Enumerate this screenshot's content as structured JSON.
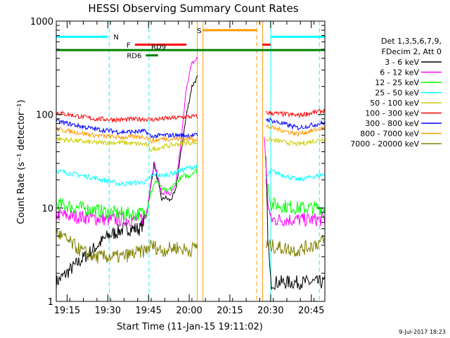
{
  "chart_data": {
    "type": "line",
    "title": "HESSI Observing Summary Count Rates",
    "xlabel": "Start Time (11-Jan-15 19:11:02)",
    "ylabel": "Count Rate (s⁻¹ detector⁻¹)",
    "yscale": "log",
    "ylim": [
      1,
      1000
    ],
    "xlim_minutes": [
      1151.0,
      1250.0
    ],
    "x_ticks": [
      {
        "label": "19:15",
        "min": 1155
      },
      {
        "label": "19:30",
        "min": 1170
      },
      {
        "label": "19:45",
        "min": 1185
      },
      {
        "label": "20:00",
        "min": 1200
      },
      {
        "label": "20:15",
        "min": 1215
      },
      {
        "label": "20:30",
        "min": 1230
      },
      {
        "label": "20:45",
        "min": 1245
      }
    ],
    "y_ticks": [
      {
        "label": "1",
        "value": 1
      },
      {
        "label": "10",
        "value": 10
      },
      {
        "label": "100",
        "value": 100
      },
      {
        "label": "1000",
        "value": 1000
      }
    ],
    "grid": false,
    "legend_position": "right",
    "legend_header": [
      "Det 1,3,5,6,7,9,",
      "FDecim 2, Att 0"
    ],
    "series": [
      {
        "name": "3 - 6 keV",
        "color": "#000000",
        "points": [
          [
            1151,
            1.6
          ],
          [
            1170,
            5
          ],
          [
            1176,
            6
          ],
          [
            1182,
            6
          ],
          [
            1184,
            8
          ],
          [
            1186,
            18
          ],
          [
            1187,
            30
          ],
          [
            1188,
            22
          ],
          [
            1189,
            16
          ],
          [
            1190,
            12
          ],
          [
            1191,
            13
          ],
          [
            1193,
            12
          ],
          [
            1195,
            15
          ],
          [
            1197,
            40
          ],
          [
            1199,
            100
          ],
          [
            1201,
            200
          ],
          [
            1203,
            250
          ],
          [
            1203.2,
            250
          ]
        ],
        "points2": [
          [
            1228,
            60
          ],
          [
            1229,
            5
          ],
          [
            1230,
            1.6
          ],
          [
            1250,
            1.6
          ]
        ]
      },
      {
        "name": "6 - 12 keV",
        "color": "#ff00ff",
        "points": [
          [
            1151,
            8.5
          ],
          [
            1170,
            7.5
          ],
          [
            1180,
            7.5
          ],
          [
            1184,
            8
          ],
          [
            1186,
            20
          ],
          [
            1187,
            30
          ],
          [
            1188,
            25
          ],
          [
            1189,
            18
          ],
          [
            1190,
            14
          ],
          [
            1191,
            15
          ],
          [
            1193,
            14
          ],
          [
            1195,
            17
          ],
          [
            1197,
            50
          ],
          [
            1199,
            200
          ],
          [
            1201,
            350
          ],
          [
            1203,
            400
          ],
          [
            1203.2,
            400
          ]
        ],
        "points2": [
          [
            1227.5,
            75
          ],
          [
            1229,
            12
          ],
          [
            1230,
            7.5
          ],
          [
            1250,
            7.5
          ]
        ]
      },
      {
        "name": "12 - 25 keV",
        "color": "#00ff00",
        "points": [
          [
            1151,
            11
          ],
          [
            1170,
            9
          ],
          [
            1180,
            8.5
          ],
          [
            1184,
            9
          ],
          [
            1186,
            15
          ],
          [
            1188,
            20
          ],
          [
            1190,
            16
          ],
          [
            1192,
            15
          ],
          [
            1194,
            17
          ],
          [
            1196,
            20
          ],
          [
            1198,
            22
          ],
          [
            1200,
            22
          ],
          [
            1202,
            25
          ],
          [
            1203.2,
            25
          ]
        ],
        "points2": [
          [
            1229,
            18
          ],
          [
            1230,
            11
          ],
          [
            1240,
            10
          ],
          [
            1250,
            10
          ]
        ]
      },
      {
        "name": "25 - 50 keV",
        "color": "#00ffff",
        "points": [
          [
            1151,
            25
          ],
          [
            1165,
            21
          ],
          [
            1175,
            18
          ],
          [
            1184,
            19
          ],
          [
            1186,
            22
          ],
          [
            1188,
            23
          ],
          [
            1190,
            22
          ],
          [
            1195,
            24
          ],
          [
            1200,
            27
          ],
          [
            1203.2,
            28
          ]
        ],
        "points2": [
          [
            1228,
            20
          ],
          [
            1230,
            25
          ],
          [
            1240,
            20
          ],
          [
            1250,
            23
          ]
        ]
      },
      {
        "name": "50 - 100 keV",
        "color": "#cccc00",
        "points": [
          [
            1151,
            55
          ],
          [
            1165,
            50
          ],
          [
            1175,
            50
          ],
          [
            1184,
            48
          ],
          [
            1186,
            42
          ],
          [
            1190,
            45
          ],
          [
            1195,
            48
          ],
          [
            1200,
            50
          ],
          [
            1203.2,
            50
          ]
        ],
        "points2": [
          [
            1228,
            55
          ],
          [
            1240,
            48
          ],
          [
            1250,
            55
          ]
        ]
      },
      {
        "name": "100 - 300 keV",
        "color": "#ff0000",
        "points": [
          [
            1151,
            105
          ],
          [
            1165,
            90
          ],
          [
            1175,
            88
          ],
          [
            1184,
            90
          ],
          [
            1186,
            88
          ],
          [
            1190,
            90
          ],
          [
            1195,
            92
          ],
          [
            1200,
            95
          ],
          [
            1203.2,
            95
          ]
        ],
        "points2": [
          [
            1228,
            105
          ],
          [
            1240,
            98
          ],
          [
            1250,
            110
          ]
        ]
      },
      {
        "name": "300 - 800 keV",
        "color": "#0000ff",
        "points": [
          [
            1151,
            85
          ],
          [
            1165,
            70
          ],
          [
            1175,
            65
          ],
          [
            1184,
            66
          ],
          [
            1186,
            58
          ],
          [
            1190,
            60
          ],
          [
            1195,
            60
          ],
          [
            1200,
            60
          ],
          [
            1203.2,
            60
          ]
        ],
        "points2": [
          [
            1228,
            90
          ],
          [
            1240,
            72
          ],
          [
            1250,
            82
          ]
        ]
      },
      {
        "name": "800 - 7000 keV",
        "color": "#ff9900",
        "points": [
          [
            1151,
            70
          ],
          [
            1165,
            60
          ],
          [
            1175,
            57
          ],
          [
            1184,
            58
          ],
          [
            1186,
            52
          ],
          [
            1190,
            55
          ],
          [
            1195,
            55
          ],
          [
            1200,
            55
          ],
          [
            1203.2,
            55
          ]
        ],
        "points2": [
          [
            1228,
            75
          ],
          [
            1240,
            62
          ],
          [
            1250,
            72
          ]
        ]
      },
      {
        "name": "7000 - 20000 keV",
        "color": "#808000",
        "points": [
          [
            1151,
            5.5
          ],
          [
            1160,
            3.5
          ],
          [
            1165,
            3
          ],
          [
            1175,
            3
          ],
          [
            1184,
            3.5
          ],
          [
            1186,
            4
          ],
          [
            1190,
            3.5
          ],
          [
            1195,
            3.8
          ],
          [
            1200,
            3.5
          ],
          [
            1203.2,
            4
          ]
        ],
        "points2": [
          [
            1228,
            4
          ],
          [
            1240,
            3.5
          ],
          [
            1250,
            4.5
          ]
        ]
      }
    ],
    "flag_bars": [
      {
        "label": "N",
        "color": "#00ffff",
        "segments": [
          [
            1151,
            1170
          ],
          [
            1230,
            1250
          ]
        ],
        "level": 680
      },
      {
        "label": "S",
        "color": "#ff9900",
        "segments": [
          [
            1205,
            1225
          ]
        ],
        "level": 800
      },
      {
        "label": "F",
        "color": "#ff0000",
        "segments": [
          [
            1180,
            1199
          ],
          [
            1227,
            1230
          ]
        ],
        "level": 560
      },
      {
        "label": "RD9",
        "color": "#008000",
        "segments": [
          [
            1151,
            1250
          ]
        ],
        "level": 490
      },
      {
        "label": "RD6",
        "color": "#008000",
        "segments": [
          [
            1184,
            1188.5
          ]
        ],
        "level": 430
      }
    ],
    "vlines": [
      {
        "min": 1170.5,
        "color": "#00ffff",
        "style": "dash"
      },
      {
        "min": 1185.2,
        "color": "#00ffff",
        "style": "dash"
      },
      {
        "min": 1203.0,
        "color": "#ff9900",
        "style": "solid"
      },
      {
        "min": 1205.1,
        "color": "#ff9900",
        "style": "solid"
      },
      {
        "min": 1224.9,
        "color": "#ff9900",
        "style": "dash"
      },
      {
        "min": 1227.1,
        "color": "#ff9900",
        "style": "solid"
      },
      {
        "min": 1230.1,
        "color": "#00ffff",
        "style": "solid"
      },
      {
        "min": 1248.0,
        "color": "#00ffff",
        "style": "dash"
      }
    ],
    "footer_date": "9-Jul-2017 18:23"
  }
}
